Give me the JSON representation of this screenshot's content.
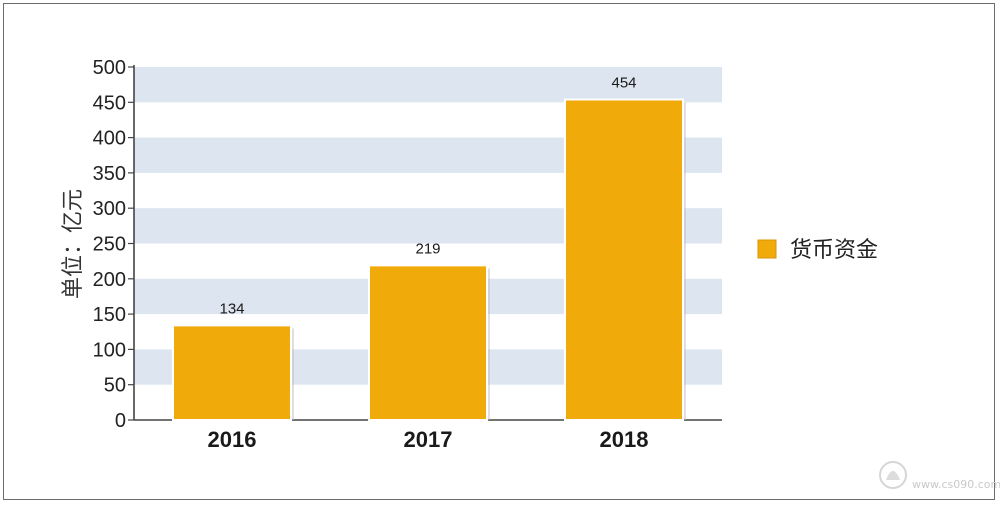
{
  "chart_data": {
    "type": "bar",
    "title": "",
    "ylabel": "单位：亿元",
    "xlabel": "",
    "categories": [
      "2016",
      "2017",
      "2018"
    ],
    "series": [
      {
        "name": "货币资金",
        "values": [
          134,
          219,
          454
        ]
      }
    ],
    "ylim": [
      0,
      500
    ],
    "yticks": [
      0,
      50,
      100,
      150,
      200,
      250,
      300,
      350,
      400,
      450,
      500
    ],
    "data_labels": [
      "134",
      "219",
      "454"
    ],
    "legend_position": "right",
    "grid": "alternating horizontal bands",
    "colors": {
      "bar": "#F0AA0A",
      "bar_edge": "#D8940A",
      "band": "#DCE5F0",
      "axis": "#444444"
    }
  },
  "watermark": {
    "text": "www.cs090.com"
  }
}
